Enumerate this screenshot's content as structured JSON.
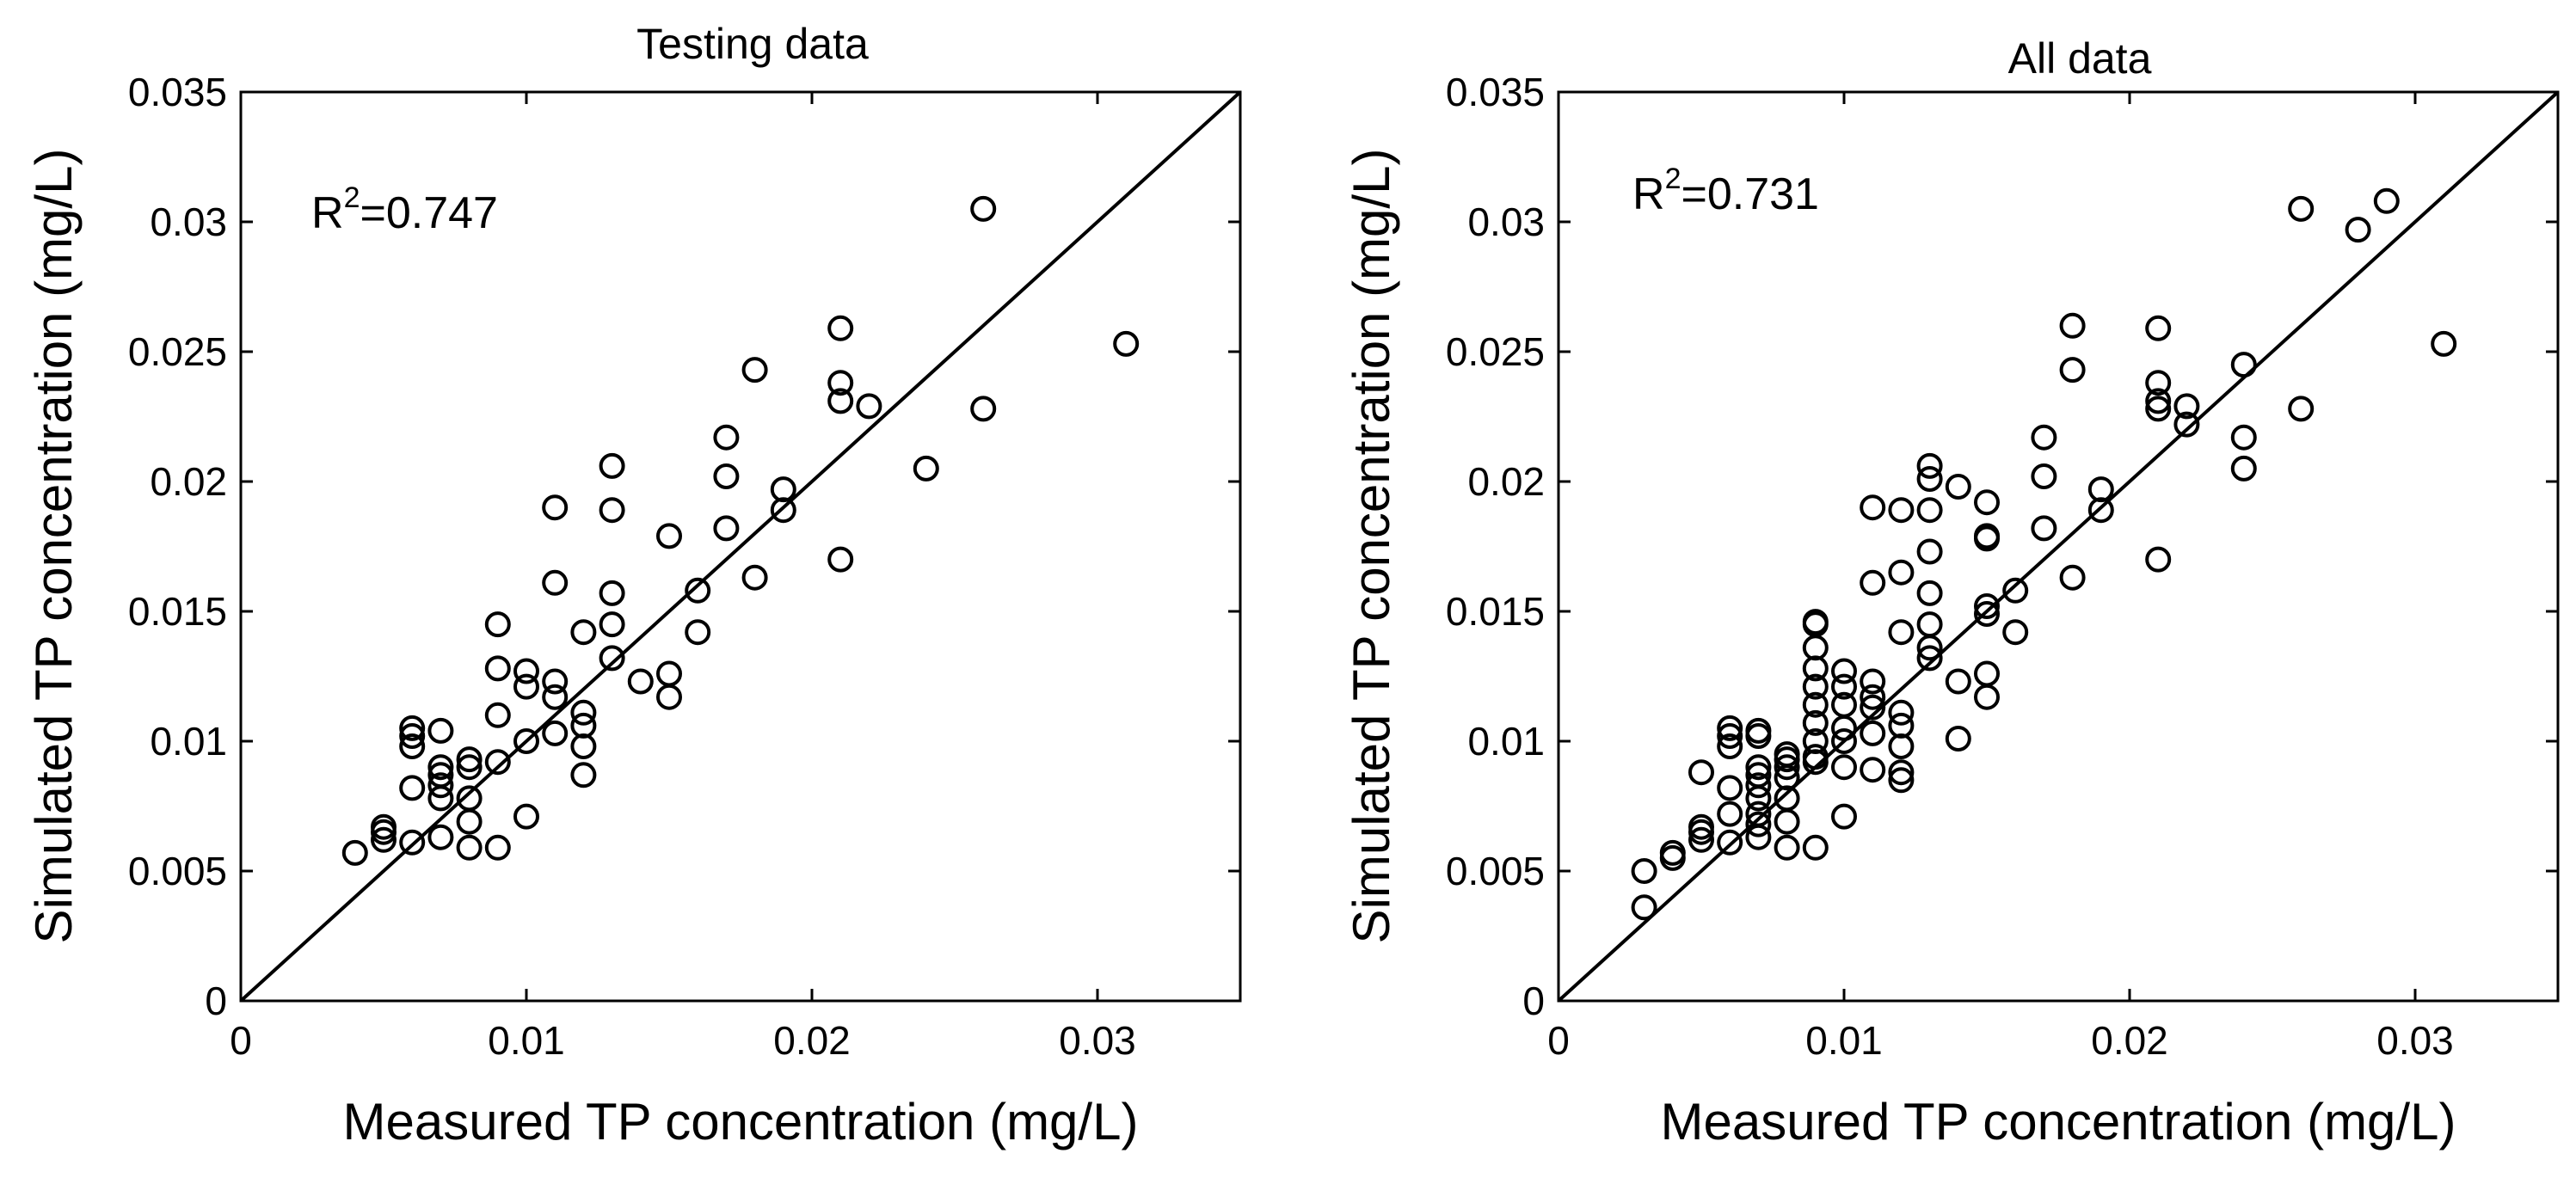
{
  "chart_data": [
    {
      "type": "scatter",
      "title": "Testing data",
      "xlabel": "Measured TP concentration (mg/L)",
      "ylabel": "Simulated TP concentration (mg/L)",
      "xlim": [
        0,
        0.035
      ],
      "ylim": [
        0,
        0.035
      ],
      "xticks": [
        0,
        0.01,
        0.02,
        0.03
      ],
      "xtick_labels": [
        "0",
        "0.01",
        "0.02",
        "0.03"
      ],
      "yticks": [
        0,
        0.005,
        0.01,
        0.015,
        0.02,
        0.025,
        0.03,
        0.035
      ],
      "ytick_labels": [
        "0",
        "0.005",
        "0.01",
        "0.015",
        "0.02",
        "0.025",
        "0.03",
        "0.035"
      ],
      "grid": false,
      "annotation": {
        "prefix": "R",
        "superscript": "2",
        "value": "=0.747"
      },
      "reference_line": {
        "type": "1:1",
        "from": [
          0,
          0
        ],
        "to": [
          0.035,
          0.035
        ]
      },
      "marker": "open-circle",
      "series": [
        {
          "name": "Testing data",
          "points": [
            [
              0.004,
              0.0057
            ],
            [
              0.005,
              0.0065
            ],
            [
              0.005,
              0.0062
            ],
            [
              0.005,
              0.0067
            ],
            [
              0.006,
              0.0105
            ],
            [
              0.006,
              0.0102
            ],
            [
              0.006,
              0.0098
            ],
            [
              0.006,
              0.0082
            ],
            [
              0.006,
              0.0061
            ],
            [
              0.007,
              0.0104
            ],
            [
              0.007,
              0.009
            ],
            [
              0.007,
              0.0087
            ],
            [
              0.007,
              0.0083
            ],
            [
              0.007,
              0.0078
            ],
            [
              0.007,
              0.0063
            ],
            [
              0.008,
              0.0093
            ],
            [
              0.008,
              0.009
            ],
            [
              0.008,
              0.0078
            ],
            [
              0.008,
              0.0069
            ],
            [
              0.008,
              0.0059
            ],
            [
              0.009,
              0.0145
            ],
            [
              0.009,
              0.0128
            ],
            [
              0.009,
              0.011
            ],
            [
              0.009,
              0.0092
            ],
            [
              0.009,
              0.0059
            ],
            [
              0.01,
              0.0127
            ],
            [
              0.01,
              0.0121
            ],
            [
              0.01,
              0.01
            ],
            [
              0.01,
              0.0071
            ],
            [
              0.011,
              0.019
            ],
            [
              0.011,
              0.0161
            ],
            [
              0.011,
              0.0123
            ],
            [
              0.011,
              0.0117
            ],
            [
              0.011,
              0.0103
            ],
            [
              0.012,
              0.0142
            ],
            [
              0.012,
              0.0111
            ],
            [
              0.012,
              0.0106
            ],
            [
              0.012,
              0.0098
            ],
            [
              0.012,
              0.0087
            ],
            [
              0.013,
              0.0206
            ],
            [
              0.013,
              0.0189
            ],
            [
              0.013,
              0.0157
            ],
            [
              0.013,
              0.0145
            ],
            [
              0.013,
              0.0132
            ],
            [
              0.014,
              0.0123
            ],
            [
              0.015,
              0.0179
            ],
            [
              0.015,
              0.0126
            ],
            [
              0.015,
              0.0117
            ],
            [
              0.016,
              0.0158
            ],
            [
              0.016,
              0.0142
            ],
            [
              0.017,
              0.0217
            ],
            [
              0.017,
              0.0202
            ],
            [
              0.017,
              0.0182
            ],
            [
              0.018,
              0.0243
            ],
            [
              0.018,
              0.0163
            ],
            [
              0.019,
              0.0197
            ],
            [
              0.019,
              0.0189
            ],
            [
              0.021,
              0.0259
            ],
            [
              0.021,
              0.0238
            ],
            [
              0.021,
              0.0231
            ],
            [
              0.021,
              0.017
            ],
            [
              0.022,
              0.0229
            ],
            [
              0.024,
              0.0205
            ],
            [
              0.026,
              0.0305
            ],
            [
              0.026,
              0.0228
            ],
            [
              0.031,
              0.0253
            ]
          ]
        }
      ]
    },
    {
      "type": "scatter",
      "title": "All data",
      "xlabel": "Measured TP concentration (mg/L)",
      "ylabel": "Simulated TP concentration (mg/L)",
      "xlim": [
        0,
        0.035
      ],
      "ylim": [
        0,
        0.035
      ],
      "xticks": [
        0,
        0.01,
        0.02,
        0.03
      ],
      "xtick_labels": [
        "0",
        "0.01",
        "0.02",
        "0.03"
      ],
      "yticks": [
        0,
        0.005,
        0.01,
        0.015,
        0.02,
        0.025,
        0.03,
        0.035
      ],
      "ytick_labels": [
        "0",
        "0.005",
        "0.01",
        "0.015",
        "0.02",
        "0.025",
        "0.03",
        "0.035"
      ],
      "grid": false,
      "annotation": {
        "prefix": "R",
        "superscript": "2",
        "value": "=0.731"
      },
      "reference_line": {
        "type": "1:1",
        "from": [
          0,
          0
        ],
        "to": [
          0.035,
          0.035
        ]
      },
      "marker": "open-circle",
      "series": [
        {
          "name": "All data",
          "points": [
            [
              0.003,
              0.005
            ],
            [
              0.003,
              0.0036
            ],
            [
              0.004,
              0.0057
            ],
            [
              0.004,
              0.0055
            ],
            [
              0.005,
              0.0088
            ],
            [
              0.005,
              0.0067
            ],
            [
              0.005,
              0.0065
            ],
            [
              0.005,
              0.0062
            ],
            [
              0.006,
              0.0105
            ],
            [
              0.006,
              0.0102
            ],
            [
              0.006,
              0.0098
            ],
            [
              0.006,
              0.0082
            ],
            [
              0.006,
              0.0072
            ],
            [
              0.006,
              0.0061
            ],
            [
              0.007,
              0.0104
            ],
            [
              0.007,
              0.0102
            ],
            [
              0.007,
              0.009
            ],
            [
              0.007,
              0.0087
            ],
            [
              0.007,
              0.0083
            ],
            [
              0.007,
              0.0078
            ],
            [
              0.007,
              0.0072
            ],
            [
              0.007,
              0.0068
            ],
            [
              0.007,
              0.0063
            ],
            [
              0.008,
              0.0095
            ],
            [
              0.008,
              0.0093
            ],
            [
              0.008,
              0.009
            ],
            [
              0.008,
              0.0086
            ],
            [
              0.008,
              0.0078
            ],
            [
              0.008,
              0.0069
            ],
            [
              0.008,
              0.0059
            ],
            [
              0.009,
              0.0146
            ],
            [
              0.009,
              0.0145
            ],
            [
              0.009,
              0.0136
            ],
            [
              0.009,
              0.0128
            ],
            [
              0.009,
              0.0121
            ],
            [
              0.009,
              0.0114
            ],
            [
              0.009,
              0.0107
            ],
            [
              0.009,
              0.01
            ],
            [
              0.009,
              0.0094
            ],
            [
              0.009,
              0.0092
            ],
            [
              0.009,
              0.0059
            ],
            [
              0.01,
              0.0127
            ],
            [
              0.01,
              0.0121
            ],
            [
              0.01,
              0.0114
            ],
            [
              0.01,
              0.0105
            ],
            [
              0.01,
              0.01
            ],
            [
              0.01,
              0.009
            ],
            [
              0.01,
              0.0071
            ],
            [
              0.011,
              0.019
            ],
            [
              0.011,
              0.0161
            ],
            [
              0.011,
              0.0123
            ],
            [
              0.011,
              0.0117
            ],
            [
              0.011,
              0.0113
            ],
            [
              0.011,
              0.0103
            ],
            [
              0.011,
              0.0089
            ],
            [
              0.012,
              0.0189
            ],
            [
              0.012,
              0.0165
            ],
            [
              0.012,
              0.0142
            ],
            [
              0.012,
              0.0111
            ],
            [
              0.012,
              0.0106
            ],
            [
              0.012,
              0.0098
            ],
            [
              0.012,
              0.0088
            ],
            [
              0.012,
              0.0085
            ],
            [
              0.013,
              0.0206
            ],
            [
              0.013,
              0.0201
            ],
            [
              0.013,
              0.0189
            ],
            [
              0.013,
              0.0173
            ],
            [
              0.013,
              0.0157
            ],
            [
              0.013,
              0.0145
            ],
            [
              0.013,
              0.0136
            ],
            [
              0.013,
              0.0132
            ],
            [
              0.014,
              0.0198
            ],
            [
              0.014,
              0.0123
            ],
            [
              0.014,
              0.0101
            ],
            [
              0.015,
              0.0192
            ],
            [
              0.015,
              0.0179
            ],
            [
              0.015,
              0.0178
            ],
            [
              0.015,
              0.0152
            ],
            [
              0.015,
              0.0149
            ],
            [
              0.015,
              0.0126
            ],
            [
              0.015,
              0.0117
            ],
            [
              0.016,
              0.0158
            ],
            [
              0.016,
              0.0142
            ],
            [
              0.017,
              0.0217
            ],
            [
              0.017,
              0.0202
            ],
            [
              0.017,
              0.0182
            ],
            [
              0.018,
              0.026
            ],
            [
              0.018,
              0.0243
            ],
            [
              0.018,
              0.0163
            ],
            [
              0.019,
              0.0197
            ],
            [
              0.019,
              0.0189
            ],
            [
              0.021,
              0.0259
            ],
            [
              0.021,
              0.0238
            ],
            [
              0.021,
              0.0231
            ],
            [
              0.021,
              0.0228
            ],
            [
              0.021,
              0.017
            ],
            [
              0.022,
              0.0229
            ],
            [
              0.022,
              0.0222
            ],
            [
              0.024,
              0.0245
            ],
            [
              0.024,
              0.0217
            ],
            [
              0.024,
              0.0205
            ],
            [
              0.026,
              0.0305
            ],
            [
              0.026,
              0.0228
            ],
            [
              0.028,
              0.0297
            ],
            [
              0.029,
              0.0308
            ],
            [
              0.031,
              0.0253
            ]
          ]
        }
      ]
    }
  ]
}
